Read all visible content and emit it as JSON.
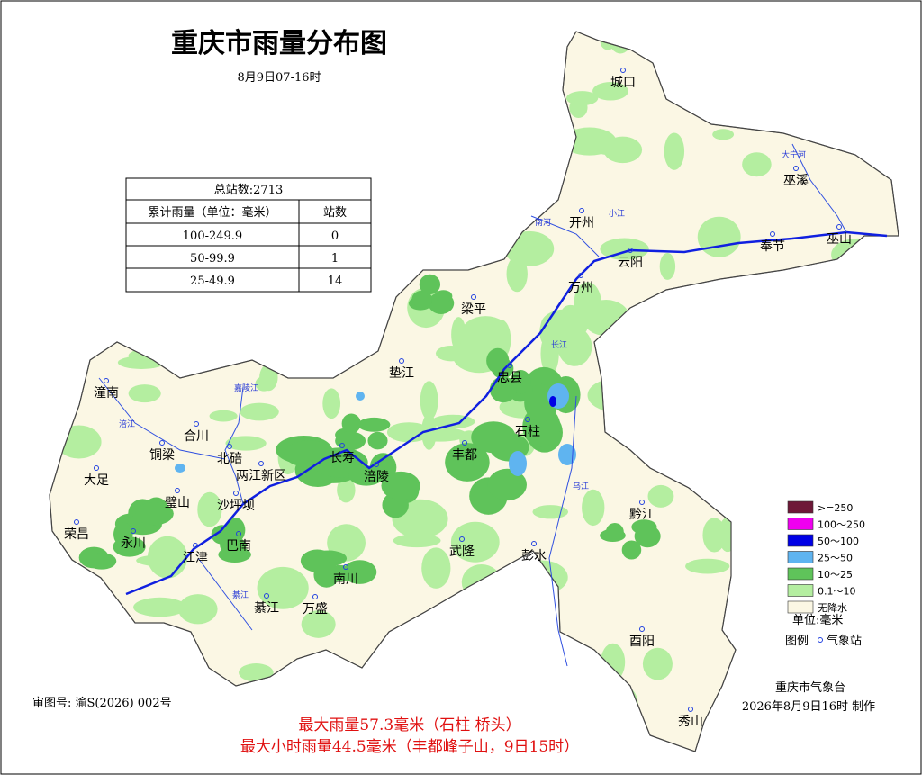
{
  "title": "重庆市雨量分布图",
  "subtitle": "8月9日07-16时",
  "stats_table": {
    "total": "总站数:2713",
    "header": [
      "累计雨量（单位：毫米）",
      "站数"
    ],
    "rows": [
      [
        "100-249.9",
        0
      ],
      [
        "50-99.9",
        1
      ],
      [
        "25-49.9",
        14
      ]
    ]
  },
  "legend": {
    "items": [
      {
        "label": ">=250",
        "color": "#6e1838"
      },
      {
        "label": "100～250",
        "color": "#f000f0"
      },
      {
        "label": "50～100",
        "color": "#0000e6"
      },
      {
        "label": "25～50",
        "color": "#5fb4f0"
      },
      {
        "label": "10～25",
        "color": "#5fc35a"
      },
      {
        "label": "0.1～10",
        "color": "#b4eea0"
      },
      {
        "label": "无降水",
        "color": "#fbf7e4"
      }
    ],
    "unit": "单位:毫米",
    "key": "图例",
    "station": "气象站"
  },
  "places": [
    "城口",
    "巫溪",
    "开州",
    "云阳",
    "奉节",
    "巫山",
    "万州",
    "梁平",
    "忠县",
    "垫江",
    "石柱",
    "丰都",
    "长寿",
    "涪陵",
    "潼南",
    "合川",
    "铜梁",
    "大足",
    "北碚",
    "两江新区",
    "璧山",
    "沙坪坝",
    "荣昌",
    "永川",
    "江津",
    "巴南",
    "南川",
    "綦江",
    "万盛",
    "武隆",
    "彭水",
    "黔江",
    "酉阳",
    "秀山"
  ],
  "rivers": [
    "大宁河",
    "南河",
    "小江",
    "长江",
    "嘉陵江",
    "涪江",
    "乌江",
    "綦江"
  ],
  "approval": "审图号: 渝S(2026) 002号",
  "max_rain": "最大雨量57.3毫米（石柱 桥头）",
  "max_hourly": "最大小时雨量44.5毫米（丰都峰子山，9日15时）",
  "producer": "重庆市气象台",
  "made": "2026年8月9日16时 制作"
}
